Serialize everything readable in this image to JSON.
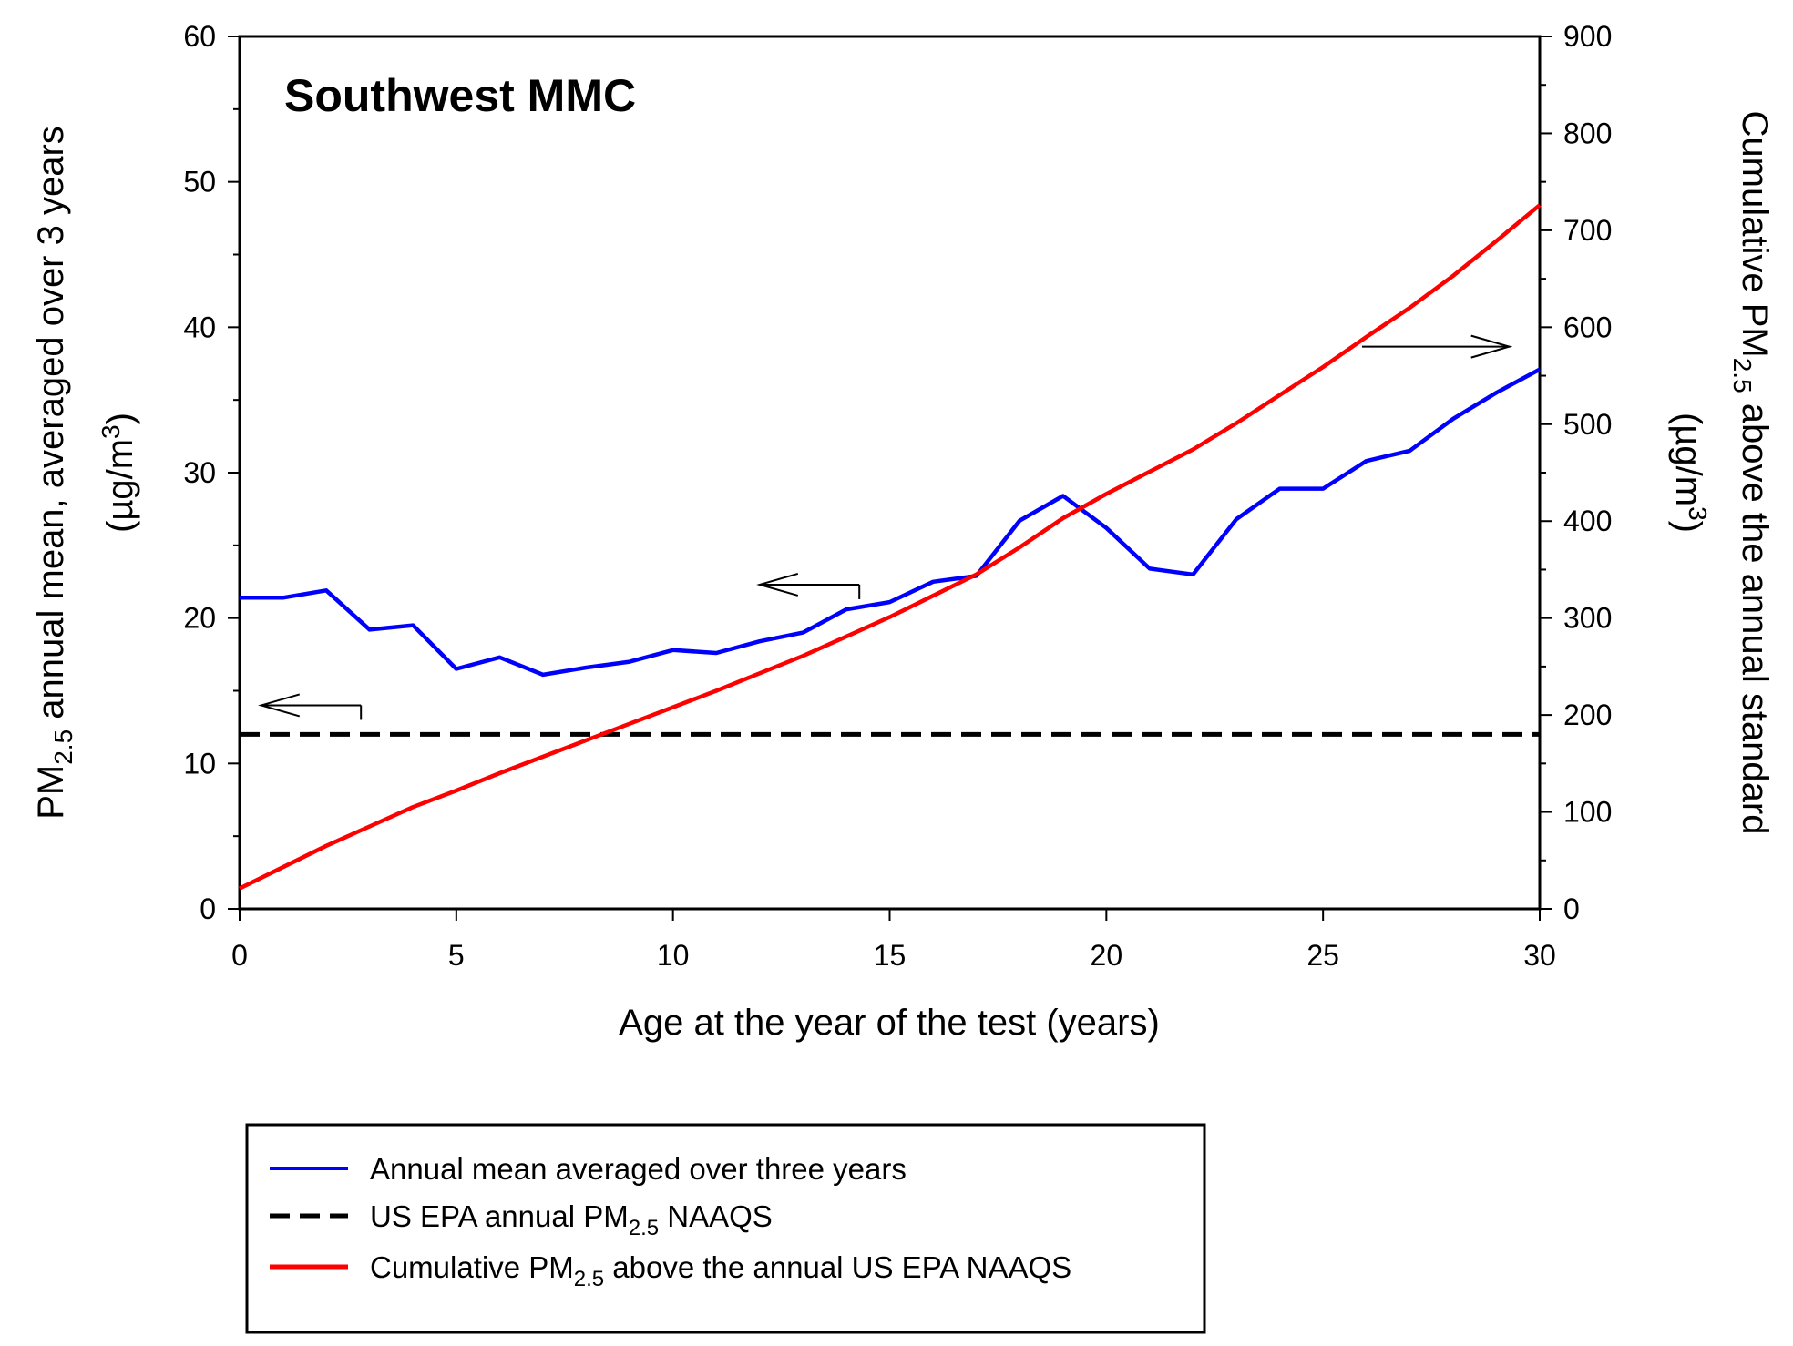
{
  "chart_data": {
    "type": "line",
    "title": "Southwest MMC",
    "xlabel": "Age at the year of the test (years)",
    "ylabel": "PM2.5 annual mean, averaged over 3 years (µg/m3)",
    "ylabel_parts": {
      "pre": "PM",
      "sub": "2.5",
      "post": " annual mean, averaged over 3 years",
      "line2_pre": "(µg/m",
      "line2_sup": "3",
      "line2_post": ")"
    },
    "y2label": "Cumulative PM2.5 above the annual standard (µg/m3)",
    "y2label_parts": {
      "pre": "Cumulative PM",
      "sub": "2.5",
      "post": " above the annual standard",
      "line2_pre": "(µg/m",
      "line2_sup": "3",
      "line2_post": ")"
    },
    "xlim": [
      0,
      30
    ],
    "ylim": [
      0,
      60
    ],
    "y2lim": [
      0,
      900
    ],
    "x_ticks": [
      0,
      5,
      10,
      15,
      20,
      25,
      30
    ],
    "y_ticks": [
      0,
      10,
      20,
      30,
      40,
      50,
      60
    ],
    "y2_ticks": [
      0,
      100,
      200,
      300,
      400,
      500,
      600,
      700,
      800,
      900
    ],
    "grid": false,
    "series": [
      {
        "name": "Annual mean averaged over three years",
        "axis": "left",
        "color": "#0000ff",
        "style": "solid",
        "x": [
          0,
          1,
          2,
          3,
          4,
          5,
          6,
          7,
          8,
          9,
          10,
          11,
          12,
          13,
          14,
          15,
          16,
          17,
          18,
          19,
          20,
          21,
          22,
          23,
          24,
          25,
          26,
          27,
          28,
          29,
          30
        ],
        "values": [
          21.4,
          21.4,
          21.9,
          19.2,
          19.5,
          16.5,
          17.3,
          16.1,
          16.6,
          17.0,
          17.8,
          17.6,
          18.4,
          19.0,
          20.6,
          21.1,
          22.5,
          22.9,
          26.7,
          28.4,
          26.2,
          23.4,
          23.0,
          26.8,
          28.9,
          28.9,
          30.8,
          31.5,
          33.7,
          35.5,
          37.1
        ]
      },
      {
        "name": "US EPA annual PM2.5 NAAQS",
        "axis": "left",
        "color": "#000000",
        "style": "dashed",
        "x": [
          0,
          30
        ],
        "values": [
          12,
          12
        ]
      },
      {
        "name": "Cumulative PM2.5 above the annual US EPA NAAQS",
        "axis": "right",
        "color": "#ff0000",
        "style": "solid",
        "x": [
          0,
          1,
          2,
          3,
          4,
          5,
          6,
          7,
          8,
          9,
          10,
          11,
          12,
          13,
          14,
          15,
          16,
          17,
          18,
          19,
          20,
          21,
          22,
          23,
          24,
          25,
          26,
          27,
          28,
          29,
          30
        ],
        "values": [
          21,
          43,
          65,
          85,
          105,
          122,
          140,
          157,
          174,
          191,
          208,
          225,
          243,
          261,
          281,
          301,
          323,
          345,
          373,
          403,
          428,
          451,
          474,
          501,
          530,
          559,
          590,
          620,
          653,
          689,
          726
        ]
      }
    ],
    "annotations": [
      {
        "type": "arrow",
        "points_to": "left axis",
        "near": "blue line",
        "x": [
          14.3,
          12.0
        ],
        "y": 22.3
      },
      {
        "type": "arrow",
        "points_to": "left axis",
        "near": "dashed line",
        "x": [
          2.8,
          0.5
        ],
        "y": 14.0
      },
      {
        "type": "arrow",
        "points_to": "right axis",
        "near": "red line",
        "x": [
          25.9,
          29.3
        ],
        "y2": 580
      }
    ],
    "legend": {
      "position": "bottom",
      "items": [
        {
          "series": 0,
          "label": "Annual mean averaged over three years",
          "pre": "Annual mean averaged over three years",
          "sub": "",
          "post": ""
        },
        {
          "series": 1,
          "label": "US EPA annual PM2.5 NAAQS",
          "pre": "US EPA annual PM",
          "sub": "2.5",
          "post": " NAAQS"
        },
        {
          "series": 2,
          "label": "Cumulative PM2.5 above the annual US EPA NAAQS",
          "pre": "Cumulative PM",
          "sub": "2.5",
          "post": " above the annual US EPA NAAQS"
        }
      ]
    }
  }
}
